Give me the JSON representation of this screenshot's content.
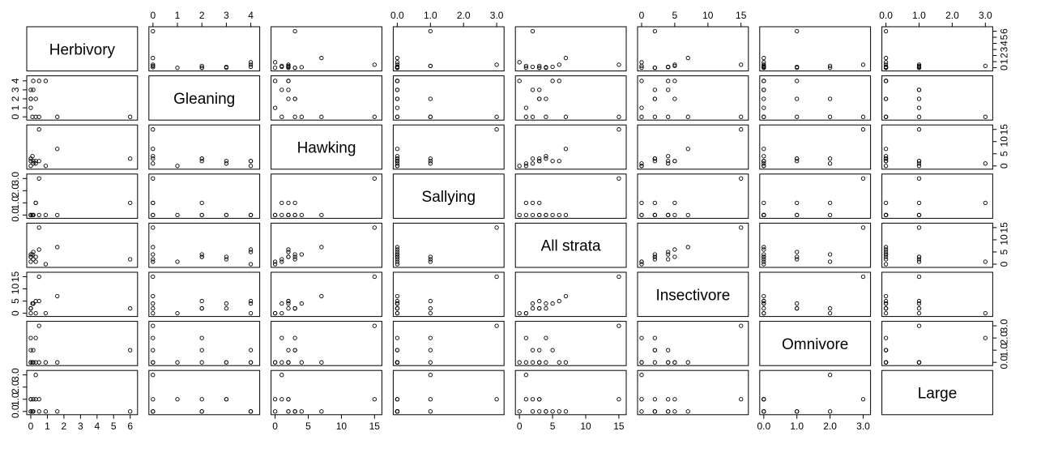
{
  "chart_data": {
    "type": "scatter",
    "layout": "pairs-matrix",
    "title": "",
    "grid": false,
    "variables": [
      {
        "name": "Herbivory",
        "range": [
          0,
          6.2
        ],
        "ticks": [
          {
            "v": 0,
            "t": "0"
          },
          {
            "v": 1,
            "t": "1"
          },
          {
            "v": 2,
            "t": "2"
          },
          {
            "v": 3,
            "t": "3"
          },
          {
            "v": 4,
            "t": "4"
          },
          {
            "v": 5,
            "t": "5"
          },
          {
            "v": 6,
            "t": "6"
          }
        ],
        "values": [
          0,
          0,
          0,
          0,
          0.1,
          0.15,
          0.15,
          0.3,
          0.3,
          0.5,
          0.5,
          0.9,
          1.6,
          6
        ]
      },
      {
        "name": "Gleaning",
        "range": [
          0,
          4.2
        ],
        "ticks": [
          {
            "v": 0,
            "t": "0"
          },
          {
            "v": 1,
            "t": "1"
          },
          {
            "v": 2,
            "t": "2"
          },
          {
            "v": 3,
            "t": "3"
          },
          {
            "v": 4,
            "t": "4"
          }
        ],
        "values": [
          1,
          2,
          2,
          3,
          0,
          4,
          3,
          2,
          0,
          4,
          0,
          4,
          0,
          0
        ]
      },
      {
        "name": "Hawking",
        "range": [
          0,
          15.5
        ],
        "ticks": [
          {
            "v": 0,
            "t": "0"
          },
          {
            "v": 5,
            "t": "5"
          },
          {
            "v": 10,
            "t": "10"
          },
          {
            "v": 15,
            "t": "15"
          }
        ],
        "values": [
          0,
          3,
          3,
          2,
          4,
          2,
          1,
          2,
          1,
          2,
          15,
          0,
          7,
          3
        ]
      },
      {
        "name": "Sallying",
        "range": [
          0,
          3.1
        ],
        "ticks": [
          {
            "v": 0,
            "t": "0.0"
          },
          {
            "v": 1,
            "t": "1.0"
          },
          {
            "v": 2,
            "t": "2.0"
          },
          {
            "v": 3,
            "t": "3.0"
          }
        ],
        "values": [
          0,
          0,
          0,
          0,
          0,
          0,
          0,
          1,
          1,
          0,
          3,
          0,
          0,
          1
        ]
      },
      {
        "name": "All strata",
        "range": [
          0,
          15.5
        ],
        "ticks": [
          {
            "v": 0,
            "t": "0"
          },
          {
            "v": 5,
            "t": "5"
          },
          {
            "v": 10,
            "t": "10"
          },
          {
            "v": 15,
            "t": "15"
          }
        ],
        "values": [
          1,
          3,
          4,
          3,
          4,
          5,
          2,
          3,
          1,
          6,
          15,
          0,
          7,
          2
        ]
      },
      {
        "name": "Insectivore",
        "range": [
          0,
          15.5
        ],
        "ticks": [
          {
            "v": 0,
            "t": "0"
          },
          {
            "v": 5,
            "t": "5"
          },
          {
            "v": 10,
            "t": "10"
          },
          {
            "v": 15,
            "t": "15"
          }
        ],
        "values": [
          0,
          2,
          2,
          2,
          4,
          4,
          4,
          5,
          0,
          5,
          15,
          0,
          7,
          2
        ]
      },
      {
        "name": "Omnivore",
        "range": [
          0,
          3.1
        ],
        "ticks": [
          {
            "v": 0,
            "t": "0.0"
          },
          {
            "v": 1,
            "t": "1.0"
          },
          {
            "v": 2,
            "t": "2.0"
          },
          {
            "v": 3,
            "t": "3.0"
          }
        ],
        "values": [
          0,
          1,
          2,
          0,
          0,
          1,
          0,
          0,
          2,
          0,
          3,
          0,
          0,
          1
        ]
      },
      {
        "name": "Large",
        "range": [
          0,
          3.1
        ],
        "ticks": [
          {
            "v": 0,
            "t": "0.0"
          },
          {
            "v": 1,
            "t": "1.0"
          },
          {
            "v": 2,
            "t": "2.0"
          },
          {
            "v": 3,
            "t": "3.0"
          }
        ],
        "values": [
          1,
          0,
          0,
          1,
          0,
          0,
          1,
          1,
          3,
          0,
          1,
          0,
          0,
          0
        ]
      }
    ]
  }
}
